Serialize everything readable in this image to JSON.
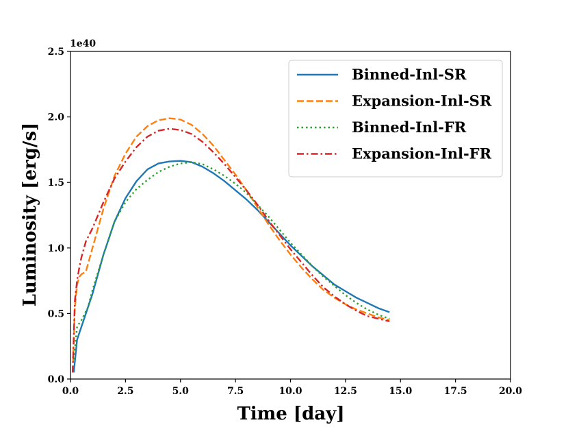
{
  "chart_data": {
    "type": "line",
    "title": "",
    "xlabel": "Time [day]",
    "ylabel": "Luminosity [erg/s]",
    "y_offset_label": "1e40",
    "xlim": [
      0,
      20
    ],
    "ylim": [
      0,
      2.5
    ],
    "x_ticks": [
      0,
      2.5,
      5,
      7.5,
      10,
      12.5,
      15,
      17.5,
      20
    ],
    "x_tick_labels": [
      "0.0",
      "2.5",
      "5.0",
      "7.5",
      "10.0",
      "12.5",
      "15.0",
      "17.5",
      "20.0"
    ],
    "y_ticks": [
      0,
      0.5,
      1,
      1.5,
      2,
      2.5
    ],
    "y_tick_labels": [
      "0.0",
      "0.5",
      "1.0",
      "1.5",
      "2.0",
      "2.5"
    ],
    "grid": false,
    "legend_position": "top-right",
    "series": [
      {
        "name": "Binned-Inl-SR",
        "color": "#1f77b4",
        "style": "solid",
        "x": [
          0.15,
          0.3,
          0.5,
          0.8,
          1.0,
          1.5,
          2.0,
          2.5,
          3.0,
          3.5,
          4.0,
          4.5,
          5.0,
          5.5,
          6.0,
          6.5,
          7.0,
          7.5,
          8.0,
          8.5,
          9.0,
          9.5,
          10.0,
          10.5,
          11.0,
          11.5,
          12.0,
          12.5,
          13.0,
          13.5,
          14.0,
          14.5
        ],
        "y": [
          0.05,
          0.3,
          0.4,
          0.55,
          0.65,
          0.95,
          1.2,
          1.38,
          1.51,
          1.6,
          1.645,
          1.66,
          1.665,
          1.655,
          1.62,
          1.57,
          1.51,
          1.44,
          1.37,
          1.29,
          1.2,
          1.11,
          1.02,
          0.94,
          0.86,
          0.79,
          0.72,
          0.67,
          0.62,
          0.58,
          0.54,
          0.51
        ]
      },
      {
        "name": "Expansion-Inl-SR",
        "color": "#ff7f0e",
        "style": "dashed",
        "x": [
          0.1,
          0.2,
          0.3,
          0.4,
          0.5,
          0.7,
          1.0,
          1.5,
          2.0,
          2.5,
          3.0,
          3.5,
          4.0,
          4.5,
          5.0,
          5.5,
          6.0,
          6.5,
          7.0,
          7.5,
          8.0,
          8.5,
          9.0,
          9.5,
          10.0,
          10.5,
          11.0,
          11.5,
          12.0,
          12.5,
          13.0,
          13.5,
          14.0,
          14.5
        ],
        "y": [
          0.05,
          0.55,
          0.72,
          0.78,
          0.8,
          0.82,
          1.0,
          1.3,
          1.55,
          1.72,
          1.85,
          1.93,
          1.975,
          1.99,
          1.98,
          1.94,
          1.87,
          1.78,
          1.67,
          1.56,
          1.44,
          1.31,
          1.18,
          1.06,
          0.95,
          0.85,
          0.76,
          0.68,
          0.62,
          0.57,
          0.53,
          0.5,
          0.47,
          0.45
        ]
      },
      {
        "name": "Binned-Inl-FR",
        "color": "#2ca02c",
        "style": "dotted",
        "x": [
          0.15,
          0.3,
          0.5,
          0.8,
          1.0,
          1.5,
          2.0,
          2.5,
          3.0,
          3.5,
          4.0,
          4.5,
          5.0,
          5.5,
          6.0,
          6.5,
          7.0,
          7.5,
          8.0,
          8.5,
          9.0,
          9.5,
          10.0,
          10.5,
          11.0,
          11.5,
          12.0,
          12.5,
          13.0,
          13.5,
          14.0,
          14.5
        ],
        "y": [
          0.15,
          0.4,
          0.45,
          0.55,
          0.68,
          0.95,
          1.2,
          1.35,
          1.45,
          1.52,
          1.58,
          1.62,
          1.645,
          1.655,
          1.64,
          1.6,
          1.55,
          1.49,
          1.42,
          1.33,
          1.24,
          1.14,
          1.04,
          0.95,
          0.86,
          0.78,
          0.71,
          0.64,
          0.58,
          0.53,
          0.49,
          0.46
        ]
      },
      {
        "name": "Expansion-Inl-FR",
        "color": "#d62728",
        "style": "dashdot",
        "x": [
          0.1,
          0.2,
          0.3,
          0.4,
          0.5,
          0.7,
          1.0,
          1.5,
          2.0,
          2.5,
          3.0,
          3.5,
          4.0,
          4.5,
          5.0,
          5.5,
          6.0,
          6.5,
          7.0,
          7.5,
          8.0,
          8.5,
          9.0,
          9.5,
          10.0,
          10.5,
          11.0,
          11.5,
          12.0,
          12.5,
          13.0,
          13.5,
          14.0,
          14.5
        ],
        "y": [
          0.05,
          0.6,
          0.75,
          0.85,
          0.93,
          1.05,
          1.15,
          1.35,
          1.53,
          1.66,
          1.77,
          1.85,
          1.895,
          1.91,
          1.9,
          1.87,
          1.81,
          1.73,
          1.64,
          1.54,
          1.44,
          1.33,
          1.21,
          1.1,
          0.99,
          0.89,
          0.79,
          0.7,
          0.63,
          0.57,
          0.52,
          0.48,
          0.46,
          0.44
        ]
      }
    ]
  }
}
